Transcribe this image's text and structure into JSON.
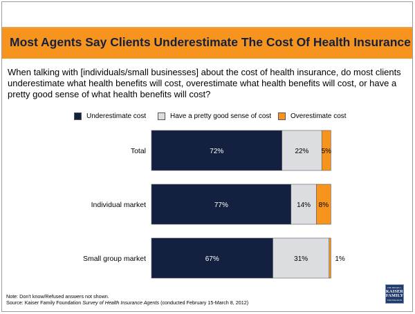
{
  "title": "Most Agents Say Clients Underestimate The Cost Of Health Insurance",
  "question": "When talking with [individuals/small businesses] about the cost of health insurance, do most clients underestimate what health benefits will cost, overestimate what health benefits will cost, or have a pretty good sense of what health benefits will cost?",
  "colors": {
    "underestimate": "#13203f",
    "good_sense": "#dcdde0",
    "overestimate": "#f7941d",
    "title_bar": "#f7941d"
  },
  "chart_data": {
    "type": "bar",
    "orientation": "horizontal",
    "stacked": true,
    "categories": [
      "Total",
      "Individual market",
      "Small group market"
    ],
    "series": [
      {
        "name": "Underestimate cost",
        "values": [
          72,
          77,
          67
        ],
        "labels": [
          "72%",
          "77%",
          "67%"
        ]
      },
      {
        "name": "Have a pretty good sense of cost",
        "values": [
          22,
          14,
          31
        ],
        "labels": [
          "22%",
          "14%",
          "31%"
        ]
      },
      {
        "name": "Overestimate cost",
        "values": [
          5,
          8,
          1
        ],
        "labels": [
          "5%",
          "8%",
          "1%"
        ]
      }
    ],
    "xlim": [
      0,
      100
    ],
    "legend_position": "top",
    "grid": false
  },
  "footnotes": {
    "note": "Note: Don't know/Refused answers not shown.",
    "source_prefix": "Source: Kaiser Family Foundation ",
    "source_title": "Survey of Health Insurance Agents",
    "source_suffix": " (conducted February 15-March 8, 2012)"
  },
  "logo": {
    "line1": "THE HENRY J.",
    "line2": "KAISER",
    "line3": "FAMILY",
    "line4": "FOUNDATION"
  }
}
